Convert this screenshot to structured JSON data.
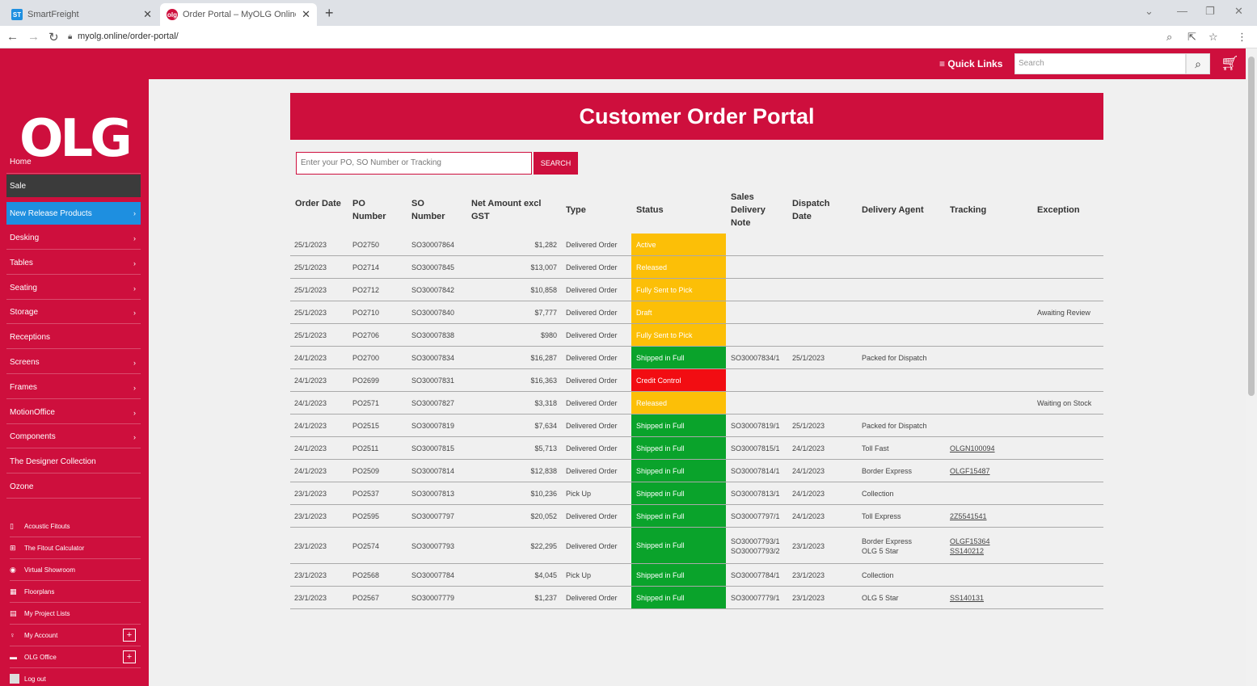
{
  "browser": {
    "tabs": [
      {
        "title": "SmartFreight",
        "favicon": "ST"
      },
      {
        "title": "Order Portal – MyOLG Online",
        "favicon": "olg"
      }
    ],
    "url": "myolg.online/order-portal/"
  },
  "header": {
    "quick_links": "Quick Links",
    "search_placeholder": "Search"
  },
  "sidebar": {
    "logo": "OLG",
    "items": [
      {
        "label": "Home"
      },
      {
        "label": "Sale"
      },
      {
        "label": "New Release Products"
      },
      {
        "label": "Desking"
      },
      {
        "label": "Tables"
      },
      {
        "label": "Seating"
      },
      {
        "label": "Storage"
      },
      {
        "label": "Receptions"
      },
      {
        "label": "Screens"
      },
      {
        "label": "Frames"
      },
      {
        "label": "MotionOffice"
      },
      {
        "label": "Components"
      },
      {
        "label": "The Designer Collection"
      },
      {
        "label": "Ozone"
      }
    ],
    "tools": [
      {
        "label": "Acoustic Fitouts"
      },
      {
        "label": "The Fitout Calculator"
      },
      {
        "label": "Virtual Showroom"
      },
      {
        "label": "Floorplans"
      },
      {
        "label": "My Project Lists"
      },
      {
        "label": "My Account"
      },
      {
        "label": "OLG Office"
      },
      {
        "label": "Log out"
      }
    ]
  },
  "main": {
    "title": "Customer Order Portal",
    "search_placeholder": "Enter your PO, SO Number or Tracking",
    "search_button": "SEARCH",
    "columns": {
      "order_date": "Order Date",
      "po": "PO Number",
      "so": "SO Number",
      "net": "Net Amount excl GST",
      "type": "Type",
      "status": "Status",
      "sdn": "Sales Delivery Note",
      "dispatch": "Dispatch Date",
      "agent": "Delivery Agent",
      "tracking": "Tracking",
      "exception": "Exception"
    },
    "status_colors": {
      "amber": "#fcbf07",
      "green": "#0aa32b",
      "red": "#f20d12"
    },
    "rows": [
      {
        "date": "25/1/2023",
        "po": "PO2750",
        "so": "SO30007864",
        "net": "$1,282",
        "type": "Delivered Order",
        "status": "Active",
        "color": "amber",
        "sdn": "",
        "dispatch": "",
        "agent": "",
        "tracking": "",
        "exception": ""
      },
      {
        "date": "25/1/2023",
        "po": "PO2714",
        "so": "SO30007845",
        "net": "$13,007",
        "type": "Delivered Order",
        "status": "Released",
        "color": "amber",
        "sdn": "",
        "dispatch": "",
        "agent": "",
        "tracking": "",
        "exception": ""
      },
      {
        "date": "25/1/2023",
        "po": "PO2712",
        "so": "SO30007842",
        "net": "$10,858",
        "type": "Delivered Order",
        "status": "Fully Sent to Pick",
        "color": "amber",
        "sdn": "",
        "dispatch": "",
        "agent": "",
        "tracking": "",
        "exception": ""
      },
      {
        "date": "25/1/2023",
        "po": "PO2710",
        "so": "SO30007840",
        "net": "$7,777",
        "type": "Delivered Order",
        "status": "Draft",
        "color": "amber",
        "sdn": "",
        "dispatch": "",
        "agent": "",
        "tracking": "",
        "exception": "Awaiting Review"
      },
      {
        "date": "25/1/2023",
        "po": "PO2706",
        "so": "SO30007838",
        "net": "$980",
        "type": "Delivered Order",
        "status": "Fully Sent to Pick",
        "color": "amber",
        "sdn": "",
        "dispatch": "",
        "agent": "",
        "tracking": "",
        "exception": ""
      },
      {
        "date": "24/1/2023",
        "po": "PO2700",
        "so": "SO30007834",
        "net": "$16,287",
        "type": "Delivered Order",
        "status": "Shipped in Full",
        "color": "green",
        "sdn": "SO30007834/1",
        "dispatch": "25/1/2023",
        "agent": "Packed for Dispatch",
        "tracking": "",
        "exception": ""
      },
      {
        "date": "24/1/2023",
        "po": "PO2699",
        "so": "SO30007831",
        "net": "$16,363",
        "type": "Delivered Order",
        "status": "Credit Control",
        "color": "red",
        "sdn": "",
        "dispatch": "",
        "agent": "",
        "tracking": "",
        "exception": ""
      },
      {
        "date": "24/1/2023",
        "po": "PO2571",
        "so": "SO30007827",
        "net": "$3,318",
        "type": "Delivered Order",
        "status": "Released",
        "color": "amber",
        "sdn": "",
        "dispatch": "",
        "agent": "",
        "tracking": "",
        "exception": "Waiting on Stock"
      },
      {
        "date": "24/1/2023",
        "po": "PO2515",
        "so": "SO30007819",
        "net": "$7,634",
        "type": "Delivered Order",
        "status": "Shipped in Full",
        "color": "green",
        "sdn": "SO30007819/1",
        "dispatch": "25/1/2023",
        "agent": "Packed for Dispatch",
        "tracking": "",
        "exception": ""
      },
      {
        "date": "24/1/2023",
        "po": "PO2511",
        "so": "SO30007815",
        "net": "$5,713",
        "type": "Delivered Order",
        "status": "Shipped in Full",
        "color": "green",
        "sdn": "SO30007815/1",
        "dispatch": "24/1/2023",
        "agent": "Toll Fast",
        "tracking": "OLGN100094",
        "exception": ""
      },
      {
        "date": "24/1/2023",
        "po": "PO2509",
        "so": "SO30007814",
        "net": "$12,838",
        "type": "Delivered Order",
        "status": "Shipped in Full",
        "color": "green",
        "sdn": "SO30007814/1",
        "dispatch": "24/1/2023",
        "agent": "Border Express",
        "tracking": "OLGF15487",
        "exception": ""
      },
      {
        "date": "23/1/2023",
        "po": "PO2537",
        "so": "SO30007813",
        "net": "$10,236",
        "type": "Pick Up",
        "status": "Shipped in Full",
        "color": "green",
        "sdn": "SO30007813/1",
        "dispatch": "24/1/2023",
        "agent": "Collection",
        "tracking": "",
        "exception": ""
      },
      {
        "date": "23/1/2023",
        "po": "PO2595",
        "so": "SO30007797",
        "net": "$20,052",
        "type": "Delivered Order",
        "status": "Shipped in Full",
        "color": "green",
        "sdn": "SO30007797/1",
        "dispatch": "24/1/2023",
        "agent": "Toll Express",
        "tracking": "2Z5541541",
        "exception": ""
      },
      {
        "date": "23/1/2023",
        "po": "PO2574",
        "so": "SO30007793",
        "net": "$22,295",
        "type": "Delivered Order",
        "status": "Shipped in Full",
        "color": "green",
        "sdn": "SO30007793/1\nSO30007793/2",
        "dispatch": "23/1/2023",
        "agent": "Border Express\nOLG 5 Star",
        "tracking": "OLGF15364\nSS140212",
        "exception": "",
        "tall": true
      },
      {
        "date": "23/1/2023",
        "po": "PO2568",
        "so": "SO30007784",
        "net": "$4,045",
        "type": "Pick Up",
        "status": "Shipped in Full",
        "color": "green",
        "sdn": "SO30007784/1",
        "dispatch": "23/1/2023",
        "agent": "Collection",
        "tracking": "",
        "exception": ""
      },
      {
        "date": "23/1/2023",
        "po": "PO2567",
        "so": "SO30007779",
        "net": "$1,237",
        "type": "Delivered Order",
        "status": "Shipped in Full",
        "color": "green",
        "sdn": "SO30007779/1",
        "dispatch": "23/1/2023",
        "agent": "OLG 5 Star",
        "tracking": "SS140131",
        "exception": ""
      }
    ]
  }
}
